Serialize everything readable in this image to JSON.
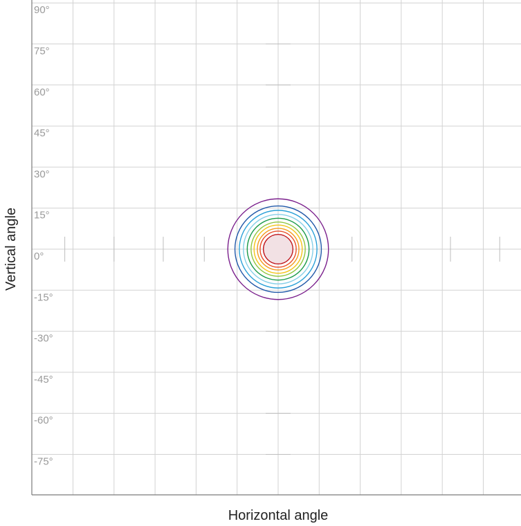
{
  "chart_data": {
    "type": "contour",
    "xlabel": "Horizontal angle",
    "ylabel": "Vertical angle",
    "y_ticks": [
      {
        "value": 90,
        "label": "90°"
      },
      {
        "value": 75,
        "label": "75°"
      },
      {
        "value": 60,
        "label": "60°"
      },
      {
        "value": 45,
        "label": "45°"
      },
      {
        "value": 30,
        "label": "30°"
      },
      {
        "value": 15,
        "label": "15°"
      },
      {
        "value": 0,
        "label": "0°"
      },
      {
        "value": -15,
        "label": "-15°"
      },
      {
        "value": -30,
        "label": "-30°"
      },
      {
        "value": -45,
        "label": "-45°"
      },
      {
        "value": -60,
        "label": "-60°"
      },
      {
        "value": -75,
        "label": "-75°"
      }
    ],
    "xlim": [
      -90,
      90
    ],
    "ylim": [
      -90,
      90
    ],
    "x_grid_step": 15,
    "y_grid_step": 15,
    "grid": true,
    "center": {
      "x": 0,
      "y": 0
    },
    "contours": [
      {
        "radius_deg": 18.4,
        "color": "#7a1f8c"
      },
      {
        "radius_deg": 15.8,
        "color": "#1f57a8"
      },
      {
        "radius_deg": 14.2,
        "color": "#2aa0d8"
      },
      {
        "radius_deg": 12.7,
        "color": "#86cfe8"
      },
      {
        "radius_deg": 11.3,
        "color": "#1a9a4a"
      },
      {
        "radius_deg": 9.9,
        "color": "#8ec63f"
      },
      {
        "radius_deg": 8.8,
        "color": "#f2c418"
      },
      {
        "radius_deg": 7.6,
        "color": "#f39a1e"
      },
      {
        "radius_deg": 6.6,
        "color": "#e8502a"
      },
      {
        "radius_deg": 5.4,
        "color": "#c0181e",
        "fill": "#f2e1e4"
      }
    ],
    "vertical_center_marks_deg": [
      75,
      60,
      30,
      -30,
      -60,
      -75
    ],
    "horizontal_center_marks_deg": [
      -78,
      -60,
      -42,
      -27,
      27,
      63,
      81
    ]
  }
}
